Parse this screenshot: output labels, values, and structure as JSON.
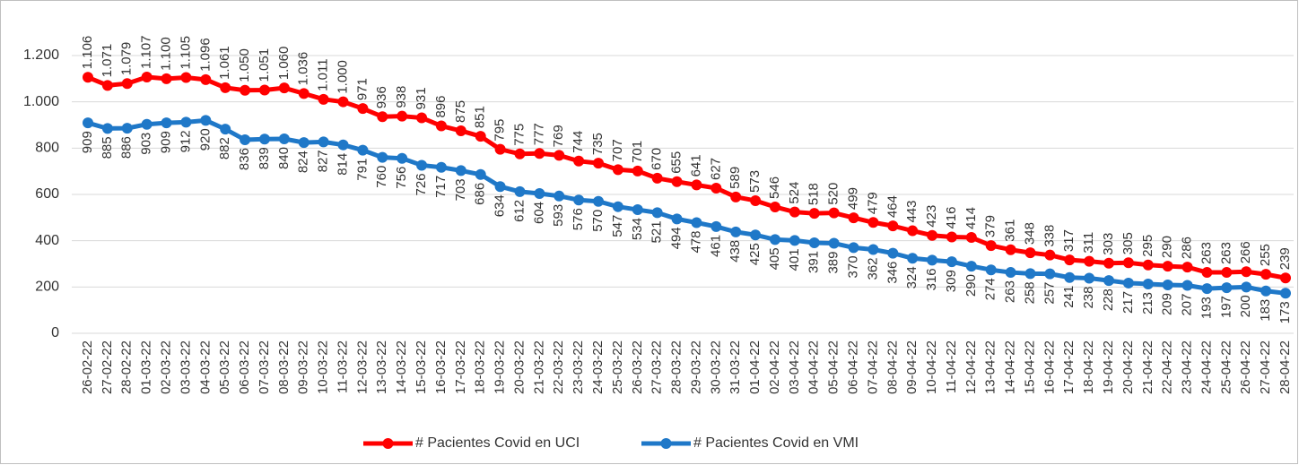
{
  "chart_data": {
    "type": "line",
    "categories": [
      "26-02-22",
      "27-02-22",
      "28-02-22",
      "01-03-22",
      "02-03-22",
      "03-03-22",
      "04-03-22",
      "05-03-22",
      "06-03-22",
      "07-03-22",
      "08-03-22",
      "09-03-22",
      "10-03-22",
      "11-03-22",
      "12-03-22",
      "13-03-22",
      "14-03-22",
      "15-03-22",
      "16-03-22",
      "17-03-22",
      "18-03-22",
      "19-03-22",
      "20-03-22",
      "21-03-22",
      "22-03-22",
      "23-03-22",
      "24-03-22",
      "25-03-22",
      "26-03-22",
      "27-03-22",
      "28-03-22",
      "29-03-22",
      "30-03-22",
      "31-03-22",
      "01-04-22",
      "02-04-22",
      "03-04-22",
      "04-04-22",
      "05-04-22",
      "06-04-22",
      "07-04-22",
      "08-04-22",
      "09-04-22",
      "10-04-22",
      "11-04-22",
      "12-04-22",
      "13-04-22",
      "14-04-22",
      "15-04-22",
      "16-04-22",
      "17-04-22",
      "18-04-22",
      "19-04-22",
      "20-04-22",
      "21-04-22",
      "22-04-22",
      "23-04-22",
      "24-04-22",
      "25-04-22",
      "26-04-22",
      "27-04-22",
      "28-04-22"
    ],
    "series": [
      {
        "name": "# Pacientes Covid en UCI",
        "color": "#ff0000",
        "label_position": "above",
        "values": [
          1106,
          1071,
          1079,
          1107,
          1100,
          1105,
          1096,
          1061,
          1050,
          1051,
          1060,
          1036,
          1011,
          1000,
          971,
          936,
          938,
          931,
          896,
          875,
          851,
          795,
          775,
          777,
          769,
          744,
          735,
          707,
          701,
          670,
          655,
          641,
          627,
          589,
          573,
          546,
          524,
          518,
          520,
          499,
          479,
          464,
          443,
          423,
          416,
          414,
          379,
          361,
          348,
          338,
          317,
          311,
          303,
          305,
          295,
          290,
          286,
          263,
          263,
          266,
          255,
          239
        ],
        "value_labels": [
          "1.106",
          "1.071",
          "1.079",
          "1.107",
          "1.100",
          "1.105",
          "1.096",
          "1.061",
          "1.050",
          "1.051",
          "1.060",
          "1.036",
          "1.011",
          "1.000",
          "971",
          "936",
          "938",
          "931",
          "896",
          "875",
          "851",
          "795",
          "775",
          "777",
          "769",
          "744",
          "735",
          "707",
          "701",
          "670",
          "655",
          "641",
          "627",
          "589",
          "573",
          "546",
          "524",
          "518",
          "520",
          "499",
          "479",
          "464",
          "443",
          "423",
          "416",
          "414",
          "379",
          "361",
          "348",
          "338",
          "317",
          "311",
          "303",
          "305",
          "295",
          "290",
          "286",
          "263",
          "263",
          "266",
          "255",
          "239"
        ]
      },
      {
        "name": "# Pacientes Covid en VMI",
        "color": "#1f78c8",
        "label_position": "below",
        "values": [
          909,
          885,
          886,
          903,
          909,
          912,
          920,
          882,
          836,
          839,
          840,
          824,
          827,
          814,
          791,
          760,
          756,
          726,
          717,
          703,
          686,
          634,
          612,
          604,
          593,
          576,
          570,
          547,
          534,
          521,
          494,
          478,
          461,
          438,
          425,
          405,
          401,
          391,
          389,
          370,
          362,
          346,
          324,
          316,
          309,
          290,
          274,
          263,
          258,
          257,
          241,
          238,
          228,
          217,
          213,
          209,
          207,
          193,
          197,
          200,
          183,
          173
        ]
      }
    ],
    "ylim": [
      0,
      1200
    ],
    "yticks": [
      0,
      200,
      400,
      600,
      800,
      {
        "value": 1000,
        "label": "1.000"
      },
      {
        "value": 1200,
        "label": "1.200"
      }
    ],
    "grid": true,
    "legend": "bottom"
  }
}
